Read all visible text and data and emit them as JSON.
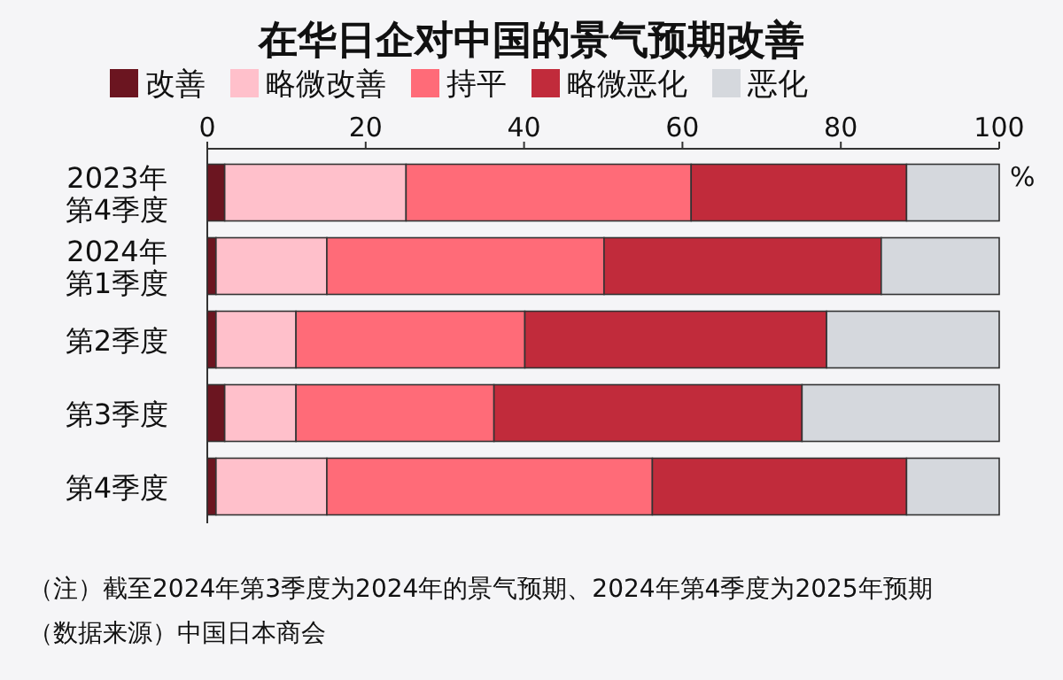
{
  "chart_data": {
    "type": "bar",
    "orientation": "horizontal",
    "stacked": true,
    "title": "在华日企对中国的景气预期改善",
    "xlabel": "%",
    "categories": [
      "2023年第4季度",
      "2024年第1季度",
      "第2季度",
      "第3季度",
      "第4季度"
    ],
    "series": [
      {
        "name": "改善",
        "color": "#6b1520",
        "values": [
          2.2,
          1.1,
          1.1,
          2.2,
          1.1
        ]
      },
      {
        "name": "略微改善",
        "color": "#ffc0cb",
        "values": [
          22.9,
          14.0,
          10.1,
          9.0,
          14.0
        ]
      },
      {
        "name": "持平",
        "color": "#ff6b78",
        "values": [
          36.0,
          35.0,
          28.9,
          25.0,
          41.1
        ]
      },
      {
        "name": "略微恶化",
        "color": "#c12b3b",
        "values": [
          27.2,
          35.0,
          38.1,
          38.9,
          32.1
        ]
      },
      {
        "name": "恶化",
        "color": "#d5d8dd",
        "values": [
          11.7,
          14.9,
          21.8,
          24.9,
          11.7
        ]
      }
    ],
    "xlim": [
      0,
      100
    ],
    "xticks": [
      0,
      20,
      40,
      60,
      80,
      100
    ],
    "legend": "top",
    "annotations": [
      "（注）截至2024年第3季度为2024年的景气预期、2024年第4季度为2025年预期",
      "（数据来源）中国日本商会"
    ]
  }
}
